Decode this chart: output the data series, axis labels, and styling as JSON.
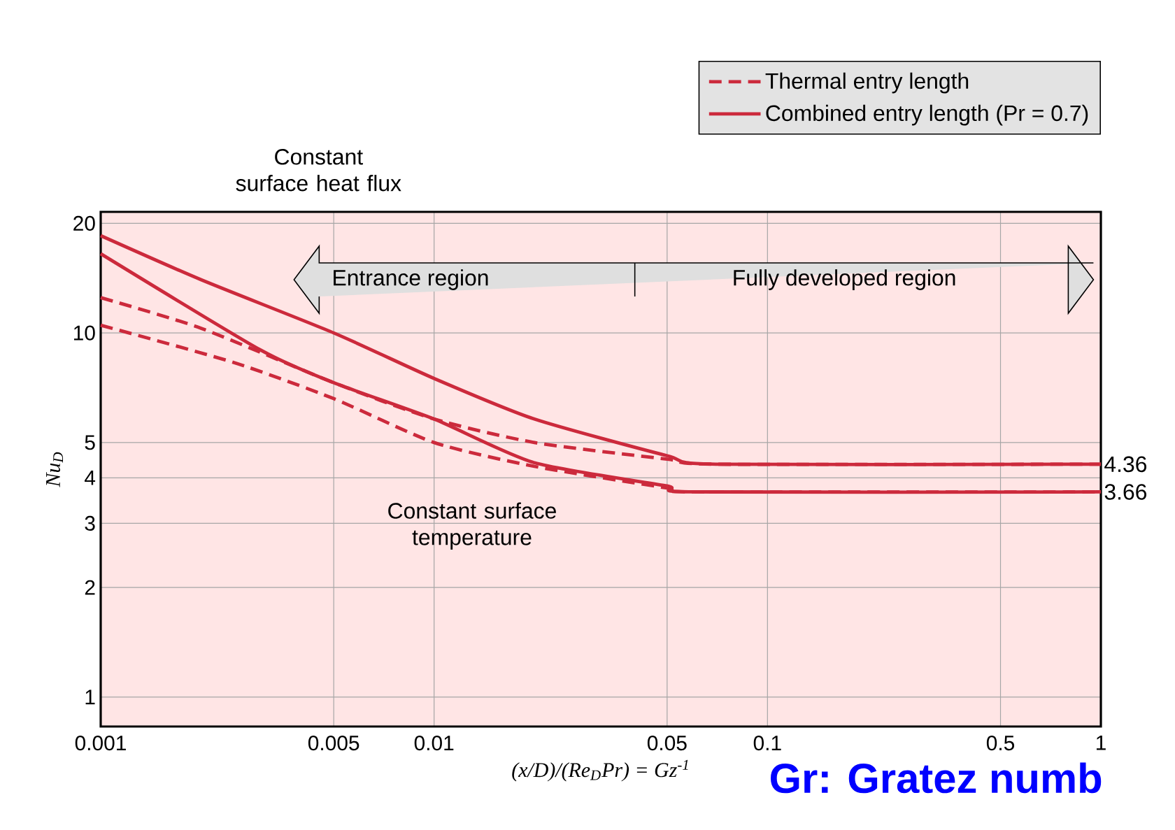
{
  "chart_data": {
    "type": "line",
    "log": "xy",
    "grid": true,
    "legend": "top right",
    "marker": "none",
    "xlabel": "(x/D)/(Re$_{D}$Pr) = Gz$^{-1}$",
    "ylabel": "Nu$_{D}$",
    "xlim": [
      0.001,
      1
    ],
    "ylim": [
      0.83,
      21.5
    ],
    "xticks": [
      0.001,
      0.005,
      0.01,
      0.05,
      0.1,
      0.5,
      1
    ],
    "yticks": [
      1,
      2,
      3,
      4,
      5,
      10,
      20
    ],
    "series": [
      {
        "name": "Thermal entry length",
        "color": "#cc2a3c",
        "line_style": "dashed",
        "x": [
          0.001,
          0.002,
          0.005,
          0.01,
          0.02,
          0.05,
          0.07,
          1
        ],
        "values": [
          12.5,
          10.3,
          7.3,
          5.8,
          5.0,
          4.5,
          4.36,
          4.36
        ]
      },
      {
        "color": "#cc2a3c",
        "line_style": "dashed",
        "x": [
          0.001,
          0.0025,
          0.005,
          0.01,
          0.02,
          0.05,
          0.06,
          1
        ],
        "values": [
          10.5,
          8.3,
          6.6,
          5.0,
          4.3,
          3.75,
          3.66,
          3.66
        ]
      },
      {
        "name": "Combined entry length (Pr = 0.7)",
        "color": "#cc2a3c",
        "line_style": "solid",
        "x": [
          0.001,
          0.002,
          0.005,
          0.01,
          0.02,
          0.05,
          0.07,
          1
        ],
        "values": [
          18.5,
          14.0,
          10.0,
          7.5,
          5.8,
          4.6,
          4.36,
          4.36
        ]
      },
      {
        "color": "#cc2a3c",
        "line_style": "solid",
        "x": [
          0.001,
          0.003,
          0.005,
          0.01,
          0.02,
          0.05,
          0.06,
          1
        ],
        "values": [
          16.5,
          9.0,
          7.3,
          5.8,
          4.4,
          3.8,
          3.66,
          3.66
        ]
      }
    ],
    "annotations": [
      "Constant surface heat flux",
      "Constant surface temperature",
      "Entrance region",
      "Fully developed region",
      {
        "text": "4.36",
        "x": 1,
        "y": 4.36
      },
      {
        "text": "3.66",
        "x": 1,
        "y": 3.66
      },
      "Gr: Gratez numb"
    ]
  }
}
